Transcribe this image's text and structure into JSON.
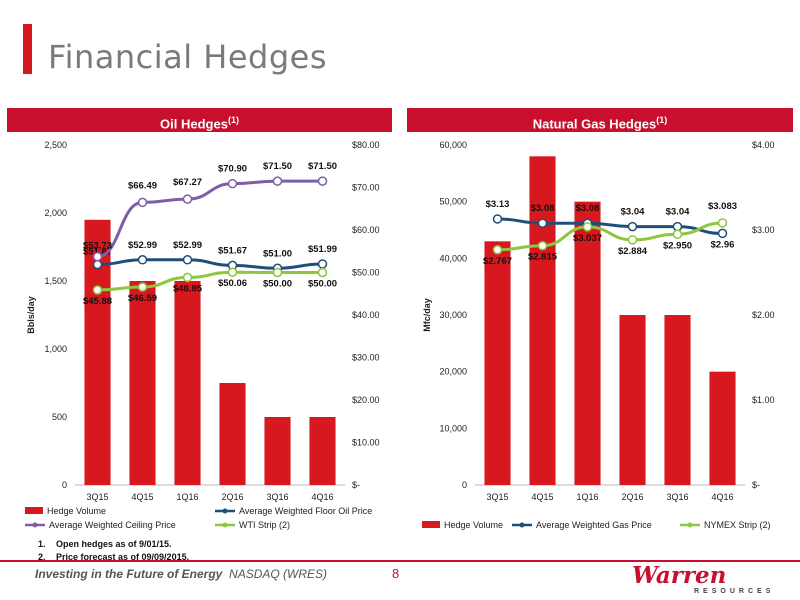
{
  "title": "Financial Hedges",
  "oil_header": {
    "label": "Oil Hedges",
    "sup": "(1)"
  },
  "gas_header": {
    "label": "Natural Gas Hedges",
    "sup": "(1)"
  },
  "notes": [
    {
      "num": "1.",
      "text": "Open hedges as of 9/01/15."
    },
    {
      "num": "2.",
      "text": "Price forecast as of 09/09/2015."
    }
  ],
  "footer": {
    "tagline_bold": "Investing in the Future of Energy",
    "ticker": "NASDAQ (WRES)",
    "page": "8"
  },
  "logo": {
    "main": "Warren",
    "sub": "RESOURCES"
  },
  "colors": {
    "bar": "#d7191f",
    "floor": "#1f4e79",
    "ceiling": "#7b5ea7",
    "strip": "#8dc63f",
    "accent": "#c8102e"
  },
  "chart_data": [
    {
      "type": "bar",
      "title": "Oil Hedges (1)",
      "categories": [
        "3Q15",
        "4Q15",
        "1Q16",
        "2Q16",
        "3Q16",
        "4Q16"
      ],
      "ylabel": "Bbls/day",
      "ylim": [
        0,
        2500
      ],
      "yticks": [
        "0",
        "500",
        "1,000",
        "1,500",
        "2,000",
        "2,500"
      ],
      "y2lim": [
        0,
        80
      ],
      "y2ticks": [
        "$-",
        "$10.00",
        "$20.00",
        "$30.00",
        "$40.00",
        "$50.00",
        "$60.00",
        "$70.00",
        "$80.00"
      ],
      "bars": {
        "name": "Hedge Volume",
        "values": [
          1950,
          1500,
          1500,
          750,
          500,
          500
        ]
      },
      "lines": [
        {
          "name": "Average Weighted Floor Oil Price",
          "values": [
            51.87,
            52.99,
            52.99,
            51.67,
            51.0,
            51.99
          ],
          "labels": [
            "$51.87",
            "$52.99",
            "$52.99",
            "$51.67",
            "$51.00",
            "$51.99"
          ]
        },
        {
          "name": "Average Weighted Ceiling Price",
          "values": [
            53.73,
            66.49,
            67.27,
            70.9,
            71.5,
            71.5
          ],
          "labels": [
            "$53.73",
            "$66.49",
            "$67.27",
            "$70.90",
            "$71.50",
            "$71.50"
          ]
        },
        {
          "name": "WTI Strip (2)",
          "values": [
            45.88,
            46.59,
            48.85,
            50.06,
            50.0,
            50.0
          ],
          "labels": [
            "$45.88",
            "$46.59",
            "$48.85",
            "$50.06",
            "$50.00",
            "$50.00"
          ]
        }
      ],
      "legend": [
        "Hedge Volume",
        "Average Weighted Floor Oil Price",
        "Average Weighted Ceiling Price",
        "WTI Strip (2)"
      ],
      "legend_position": "bottom"
    },
    {
      "type": "bar",
      "title": "Natural Gas Hedges (1)",
      "categories": [
        "3Q15",
        "4Q15",
        "1Q16",
        "2Q16",
        "3Q16",
        "4Q16"
      ],
      "ylabel": "Mfc/day",
      "ylim": [
        0,
        60000
      ],
      "yticks": [
        "0",
        "10,000",
        "20,000",
        "30,000",
        "40,000",
        "50,000",
        "60,000"
      ],
      "y2lim": [
        0,
        4
      ],
      "y2ticks": [
        "$-",
        "$1.00",
        "$2.00",
        "$3.00",
        "$4.00"
      ],
      "bars": {
        "name": "Hedge Volume",
        "values": [
          43000,
          58000,
          50000,
          30000,
          30000,
          20000
        ]
      },
      "lines": [
        {
          "name": "Average Weighted Gas Price",
          "values": [
            3.13,
            3.08,
            3.08,
            3.04,
            3.04,
            2.96
          ],
          "labels": [
            "$3.13",
            "$3.08",
            "$3.08",
            "$3.04",
            "$3.04",
            "$2.96"
          ]
        },
        {
          "name": "NYMEX Strip (2)",
          "values": [
            2.767,
            2.815,
            3.037,
            2.884,
            2.95,
            3.083
          ],
          "labels": [
            "$2.767",
            "$2.815",
            "$3.037",
            "$2.884",
            "$2.950",
            "$3.083"
          ]
        }
      ],
      "legend": [
        "Hedge Volume",
        "Average Weighted Gas Price",
        "NYMEX Strip (2)"
      ],
      "legend_position": "bottom"
    }
  ]
}
